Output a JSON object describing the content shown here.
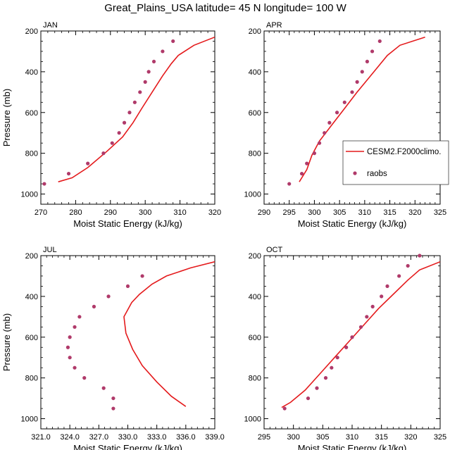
{
  "figure": {
    "title": "Great_Plains_USA  latitude= 45 N longitude= 100 W"
  },
  "legend": {
    "entries": [
      {
        "label": "CESM2.F2000climo.",
        "kind": "line",
        "color": "#e41a1c"
      },
      {
        "label": "raobs",
        "kind": "marker",
        "color": "#b03a6a"
      }
    ]
  },
  "chart_data": [
    {
      "type": "line",
      "title": "JAN",
      "xlabel": "Moist Static Energy (kJ/kg)",
      "ylabel": "Pressure (mb)",
      "xlim": [
        270,
        320
      ],
      "ylim": [
        1050,
        200
      ],
      "y_reversed": true,
      "xticks": [
        270,
        280,
        290,
        300,
        310,
        320
      ],
      "xtick_labels": [
        "270",
        "280",
        "290",
        "300",
        "310",
        "320"
      ],
      "yticks": [
        200,
        400,
        600,
        800,
        1000
      ],
      "ytick_labels": [
        "200",
        "400",
        "600",
        "800",
        "1000"
      ],
      "series": [
        {
          "name": "CESM2.F2000climo.",
          "style": "line",
          "color": "#e41a1c",
          "x": [
            275.0,
            279.0,
            283.5,
            289.0,
            293.5,
            296.5,
            299.0,
            302.0,
            305.0,
            307.5,
            309.5,
            314.0,
            320.0
          ],
          "y": [
            940,
            920,
            870,
            790,
            720,
            650,
            580,
            500,
            420,
            360,
            320,
            270,
            230
          ]
        },
        {
          "name": "raobs",
          "style": "marker",
          "color": "#b03a6a",
          "x": [
            271.0,
            278.0,
            283.5,
            288.0,
            290.5,
            292.5,
            294.0,
            295.5,
            297.0,
            298.5,
            300.0,
            301.0,
            302.5,
            305.0,
            308.0
          ],
          "y": [
            950,
            900,
            850,
            800,
            750,
            700,
            650,
            600,
            550,
            500,
            450,
            400,
            350,
            300,
            250
          ]
        }
      ]
    },
    {
      "type": "line",
      "title": "APR",
      "xlabel": "Moist Static Energy (kJ/kg)",
      "ylabel": "",
      "xlim": [
        290,
        325
      ],
      "ylim": [
        1050,
        200
      ],
      "y_reversed": true,
      "xticks": [
        290,
        295,
        300,
        305,
        310,
        315,
        320,
        325
      ],
      "xtick_labels": [
        "290",
        "295",
        "300",
        "305",
        "310",
        "315",
        "320",
        "325"
      ],
      "yticks": [
        200,
        400,
        600,
        800,
        1000
      ],
      "ytick_labels": [
        "200",
        "400",
        "600",
        "800",
        "1000"
      ],
      "series": [
        {
          "name": "CESM2.F2000climo.",
          "style": "line",
          "color": "#e41a1c",
          "x": [
            297.0,
            298.5,
            299.5,
            301.0,
            303.5,
            306.0,
            308.5,
            310.5,
            312.5,
            314.5,
            317.0,
            322.0
          ],
          "y": [
            940,
            880,
            810,
            740,
            660,
            580,
            500,
            440,
            380,
            320,
            270,
            230
          ]
        },
        {
          "name": "raobs",
          "style": "marker",
          "color": "#b03a6a",
          "x": [
            295.0,
            297.5,
            298.5,
            300.0,
            301.0,
            302.0,
            303.0,
            304.5,
            306.0,
            307.5,
            308.5,
            309.5,
            310.5,
            311.5,
            313.0
          ],
          "y": [
            950,
            900,
            850,
            800,
            750,
            700,
            650,
            600,
            550,
            500,
            450,
            400,
            350,
            300,
            250
          ]
        }
      ]
    },
    {
      "type": "line",
      "title": "JUL",
      "xlabel": "Moist Static Energy (kJ/kg)",
      "ylabel": "Pressure (mb)",
      "xlim": [
        321,
        339
      ],
      "ylim": [
        1050,
        200
      ],
      "y_reversed": true,
      "xticks": [
        321,
        324,
        327,
        330,
        333,
        336,
        339
      ],
      "xtick_labels": [
        "321.0",
        "324.0",
        "327.0",
        "330.0",
        "333.0",
        "336.0",
        "339.0"
      ],
      "yticks": [
        200,
        400,
        600,
        800,
        1000
      ],
      "ytick_labels": [
        "200",
        "400",
        "600",
        "800",
        "1000"
      ],
      "series": [
        {
          "name": "CESM2.F2000climo.",
          "style": "line",
          "color": "#e41a1c",
          "x": [
            336.0,
            334.5,
            333.0,
            331.5,
            330.5,
            329.8,
            329.6,
            330.4,
            331.2,
            332.5,
            334.0,
            336.5,
            339.0
          ],
          "y": [
            940,
            890,
            820,
            740,
            660,
            580,
            500,
            430,
            390,
            340,
            300,
            260,
            230
          ]
        },
        {
          "name": "raobs",
          "style": "marker",
          "color": "#b03a6a",
          "x": [
            328.5,
            328.5,
            327.5,
            325.5,
            324.5,
            324.0,
            323.8,
            324.0,
            324.5,
            325.0,
            326.5,
            328.0,
            330.0,
            331.5
          ],
          "y": [
            950,
            900,
            850,
            800,
            750,
            700,
            650,
            600,
            550,
            500,
            450,
            400,
            350,
            300
          ]
        }
      ]
    },
    {
      "type": "line",
      "title": "OCT",
      "xlabel": "Moist Static Energy (kJ/kg)",
      "ylabel": "",
      "xlim": [
        295,
        325
      ],
      "ylim": [
        1050,
        200
      ],
      "y_reversed": true,
      "xticks": [
        295,
        300,
        305,
        310,
        315,
        320,
        325
      ],
      "xtick_labels": [
        "295",
        "300",
        "305",
        "310",
        "315",
        "320",
        "325"
      ],
      "yticks": [
        200,
        400,
        600,
        800,
        1000
      ],
      "ytick_labels": [
        "200",
        "400",
        "600",
        "800",
        "1000"
      ],
      "series": [
        {
          "name": "CESM2.F2000climo.",
          "style": "line",
          "color": "#e41a1c",
          "x": [
            298.0,
            299.5,
            302.0,
            304.5,
            307.0,
            309.5,
            312.0,
            314.5,
            317.0,
            319.5,
            321.5,
            325.0
          ],
          "y": [
            945,
            920,
            860,
            780,
            700,
            620,
            540,
            460,
            390,
            320,
            270,
            230
          ]
        },
        {
          "name": "raobs",
          "style": "marker",
          "color": "#b03a6a",
          "x": [
            298.5,
            302.5,
            304.0,
            305.5,
            306.5,
            307.5,
            309.0,
            310.0,
            311.5,
            312.5,
            313.5,
            315.0,
            316.0,
            318.0,
            319.5,
            321.5
          ],
          "y": [
            950,
            900,
            850,
            800,
            750,
            700,
            650,
            600,
            550,
            500,
            450,
            400,
            350,
            300,
            250,
            200
          ]
        }
      ]
    }
  ]
}
